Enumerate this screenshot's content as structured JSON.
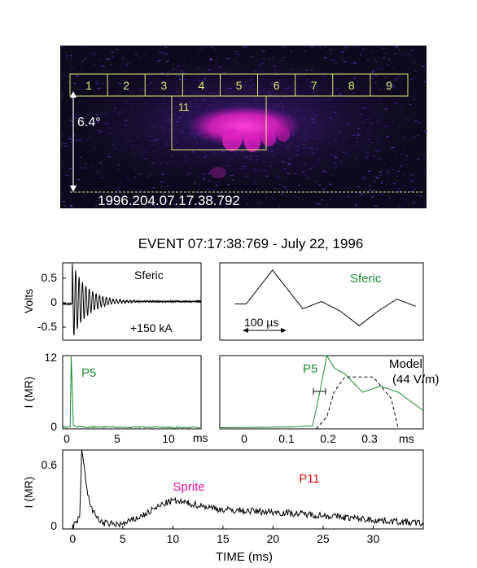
{
  "image_panel": {
    "grid_boxes": [
      "1",
      "2",
      "3",
      "4",
      "5",
      "6",
      "7",
      "8",
      "9"
    ],
    "sprite_box": "11",
    "angle_label": "6.4°",
    "timestamp": "1996.204.07.17.38.792"
  },
  "title": "EVENT 07:17:38:769 - July 22, 1996",
  "colors": {
    "green": "#1a8a2e",
    "red": "#e01010",
    "magenta": "#e0109a",
    "black": "#000000"
  },
  "chart_data": [
    {
      "type": "line",
      "panel": "sferic-wide",
      "ylabel": "Volts",
      "ylim": [
        -0.75,
        0.85
      ],
      "xlim": [
        0,
        13
      ],
      "yticks": [
        "0.5",
        "0",
        "-0.5"
      ],
      "annotations": [
        "Sferic",
        "+150 kA"
      ],
      "series": [
        {
          "x": [
            0.9,
            1.0,
            1.15,
            1.3,
            1.45,
            1.6,
            2.0,
            4.0,
            6.0,
            10.0,
            13.0
          ],
          "y": [
            0.0,
            0.8,
            -0.6,
            0.6,
            -0.5,
            0.45,
            0.3,
            0.15,
            0.08,
            0.05,
            0.05
          ]
        }
      ]
    },
    {
      "type": "line",
      "panel": "sferic-zoom",
      "annotations": [
        "Sferic"
      ],
      "scale_bar": "100 µs",
      "series": [
        {
          "x": [
            0.0,
            0.07,
            0.15,
            0.2,
            0.25,
            0.3,
            0.35,
            0.4,
            0.45
          ],
          "y": [
            0.05,
            0.75,
            -0.05,
            0.1,
            -0.1,
            -0.4,
            -0.1,
            0.15,
            0.0
          ]
        }
      ]
    },
    {
      "type": "line",
      "panel": "p5-wide",
      "ylabel": "I (MR)",
      "ylim": [
        0,
        12
      ],
      "xlim": [
        0,
        13
      ],
      "yticks": [
        "12",
        "0"
      ],
      "xticks": [
        "0",
        "5",
        "10"
      ],
      "xunit": "ms",
      "series": [
        {
          "name": "P5",
          "x": [
            0.0,
            0.7,
            0.8,
            0.9,
            1.0,
            1.2,
            2.0,
            13.0
          ],
          "y": [
            0.2,
            0.3,
            12.0,
            6.0,
            0.5,
            0.4,
            0.3,
            0.2
          ]
        }
      ]
    },
    {
      "type": "line",
      "panel": "p5-zoom",
      "xlim": [
        -0.1,
        0.47
      ],
      "xticks": [
        "0",
        "0.1",
        "0.2",
        "0.3"
      ],
      "xunit": "ms",
      "annotations": [
        "Model",
        "(44 V/m)"
      ],
      "series": [
        {
          "name": "P5",
          "x": [
            -0.1,
            0.1,
            0.16,
            0.18,
            0.2,
            0.22,
            0.25,
            0.3,
            0.35,
            0.4,
            0.47
          ],
          "y": [
            0.2,
            0.3,
            0.5,
            6.0,
            12.0,
            10.0,
            9.0,
            6.0,
            7.0,
            6.0,
            3.0
          ]
        },
        {
          "name": "Model",
          "x": [
            0.17,
            0.2,
            0.22,
            0.25,
            0.3,
            0.33,
            0.38,
            0.4
          ],
          "y": [
            0.0,
            2.0,
            6.0,
            8.5,
            8.5,
            8.5,
            5.0,
            0.0
          ]
        }
      ]
    },
    {
      "type": "line",
      "panel": "p11",
      "xlabel": "TIME (ms)",
      "ylabel": "I (MR)",
      "ylim": [
        0,
        0.7
      ],
      "xlim": [
        -1,
        35
      ],
      "xticks": [
        "0",
        "5",
        "10",
        "15",
        "20",
        "25",
        "30"
      ],
      "yticks": [
        "0.6",
        "0"
      ],
      "annotations": [
        "Sprite",
        "P11"
      ],
      "series": [
        {
          "name": "P11",
          "x": [
            0,
            0.7,
            0.9,
            1.1,
            1.5,
            2.0,
            3.0,
            5.0,
            7.0,
            9.0,
            10.0,
            12.0,
            15.0,
            20.0,
            25.0,
            30.0,
            35.0
          ],
          "y": [
            0.02,
            0.1,
            0.7,
            0.6,
            0.3,
            0.15,
            0.05,
            0.04,
            0.12,
            0.22,
            0.25,
            0.22,
            0.17,
            0.15,
            0.12,
            0.08,
            0.05
          ]
        }
      ]
    }
  ]
}
